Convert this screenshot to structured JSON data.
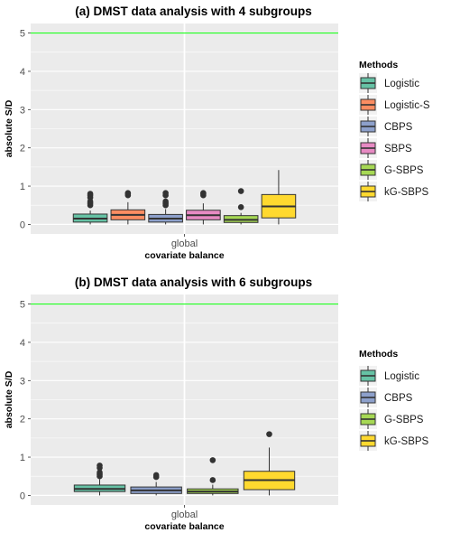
{
  "colors": {
    "panel_bg": "#EBEBEB",
    "grid": "#FFFFFF",
    "reference_line": "#00FF00",
    "Logistic": "#66C2A5",
    "Logistic-S": "#FC8D62",
    "CBPS": "#8DA0CB",
    "SBPS": "#E78AC3",
    "G-SBPS": "#A6D854",
    "kG-SBPS": "#FFD92F"
  },
  "chart_data": [
    {
      "type": "box",
      "title": "(a) DMST data analysis with 4 subgroups",
      "xlabel": "covariate balance",
      "ylabel": "absolute S/D",
      "categories": [
        "global"
      ],
      "ylim": [
        -0.25,
        5.25
      ],
      "yticks": [
        "0",
        "1",
        "2",
        "3",
        "4",
        "5"
      ],
      "reference_line": 5,
      "legend_title": "Methods",
      "legend_position": "right",
      "series": [
        {
          "name": "Logistic",
          "q1": 0.06,
          "median": 0.15,
          "q3": 0.27,
          "whisker_low": 0.0,
          "whisker_high": 0.36,
          "outliers": [
            0.5,
            0.55,
            0.6,
            0.7,
            0.76,
            0.8
          ]
        },
        {
          "name": "Logistic-S",
          "q1": 0.12,
          "median": 0.25,
          "q3": 0.38,
          "whisker_low": 0.0,
          "whisker_high": 0.58,
          "outliers": [
            0.76,
            0.8,
            0.82
          ]
        },
        {
          "name": "CBPS",
          "q1": 0.06,
          "median": 0.15,
          "q3": 0.26,
          "whisker_low": 0.0,
          "whisker_high": 0.4,
          "outliers": [
            0.5,
            0.55,
            0.6,
            0.76,
            0.82
          ]
        },
        {
          "name": "SBPS",
          "q1": 0.12,
          "median": 0.24,
          "q3": 0.37,
          "whisker_low": 0.0,
          "whisker_high": 0.55,
          "outliers": [
            0.76,
            0.8,
            0.82
          ]
        },
        {
          "name": "G-SBPS",
          "q1": 0.05,
          "median": 0.12,
          "q3": 0.23,
          "whisker_low": 0.0,
          "whisker_high": 0.3,
          "outliers": [
            0.45,
            0.87
          ]
        },
        {
          "name": "kG-SBPS",
          "q1": 0.17,
          "median": 0.47,
          "q3": 0.78,
          "whisker_low": 0.0,
          "whisker_high": 1.42,
          "outliers": []
        }
      ]
    },
    {
      "type": "box",
      "title": "(b) DMST data analysis with 6 subgroups",
      "xlabel": "covariate balance",
      "ylabel": "absolute S/D",
      "categories": [
        "global"
      ],
      "ylim": [
        -0.25,
        5.25
      ],
      "yticks": [
        "0",
        "1",
        "2",
        "3",
        "4",
        "5"
      ],
      "reference_line": 5,
      "legend_title": "Methods",
      "legend_position": "right",
      "series": [
        {
          "name": "Logistic",
          "q1": 0.1,
          "median": 0.17,
          "q3": 0.27,
          "whisker_low": 0.0,
          "whisker_high": 0.42,
          "outliers": [
            0.5,
            0.55,
            0.6,
            0.72,
            0.78
          ]
        },
        {
          "name": "CBPS",
          "q1": 0.05,
          "median": 0.13,
          "q3": 0.22,
          "whisker_low": 0.0,
          "whisker_high": 0.35,
          "outliers": [
            0.48,
            0.53
          ]
        },
        {
          "name": "G-SBPS",
          "q1": 0.05,
          "median": 0.1,
          "q3": 0.17,
          "whisker_low": 0.0,
          "whisker_high": 0.28,
          "outliers": [
            0.4,
            0.92
          ]
        },
        {
          "name": "kG-SBPS",
          "q1": 0.15,
          "median": 0.4,
          "q3": 0.63,
          "whisker_low": 0.0,
          "whisker_high": 1.25,
          "outliers": [
            1.6
          ]
        }
      ]
    }
  ]
}
